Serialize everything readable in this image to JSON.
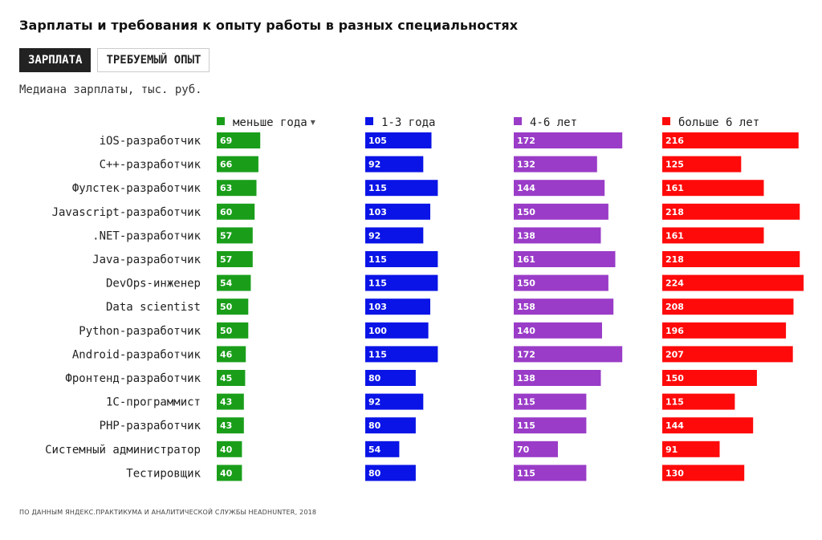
{
  "title": "Зарплаты и требования к опыту работы в разных специальностях",
  "tabs": [
    {
      "label": "ЗАРПЛАТА",
      "active": true
    },
    {
      "label": "ТРЕБУЕМЫЙ ОПЫТ",
      "active": false
    }
  ],
  "subtitle": "Медиана зарплаты, тыс. руб.",
  "sort_indicator": "▼",
  "footer": "По данным Яндекс.Практикума и аналитической службы HeadHunter, 2018",
  "chart_data": {
    "type": "bar",
    "orientation": "horizontal",
    "grouping": "small-multiples",
    "categories": [
      "iOS-разработчик",
      "C++-разработчик",
      "Фулстек-разработчик",
      "Javascript-разработчик",
      ".NET-разработчик",
      "Java-разработчик",
      "DevOps-инженер",
      "Data scientist",
      "Python-разработчик",
      "Android-разработчик",
      "Фронтенд-разработчик",
      "1C-программист",
      "PHP-разработчик",
      "Системный администратор",
      "Тестировщик"
    ],
    "series": [
      {
        "name": "меньше года",
        "color": "#1a9e1a",
        "values": [
          69,
          66,
          63,
          60,
          57,
          57,
          54,
          50,
          50,
          46,
          45,
          43,
          43,
          40,
          40
        ]
      },
      {
        "name": "1-3 года",
        "color": "#0a14e6",
        "values": [
          105,
          92,
          115,
          103,
          92,
          115,
          115,
          103,
          100,
          115,
          80,
          92,
          80,
          54,
          80
        ]
      },
      {
        "name": "4-6 лет",
        "color": "#9a3cc8",
        "values": [
          172,
          132,
          144,
          150,
          138,
          161,
          150,
          158,
          140,
          172,
          138,
          115,
          115,
          70,
          115
        ]
      },
      {
        "name": "больше 6 лет",
        "color": "#ff0a0a",
        "values": [
          216,
          125,
          161,
          218,
          161,
          218,
          224,
          208,
          196,
          207,
          150,
          115,
          144,
          91,
          130
        ]
      }
    ],
    "sorted_by": "меньше года",
    "legend_position": "top",
    "grid": false,
    "data_labels": true
  }
}
